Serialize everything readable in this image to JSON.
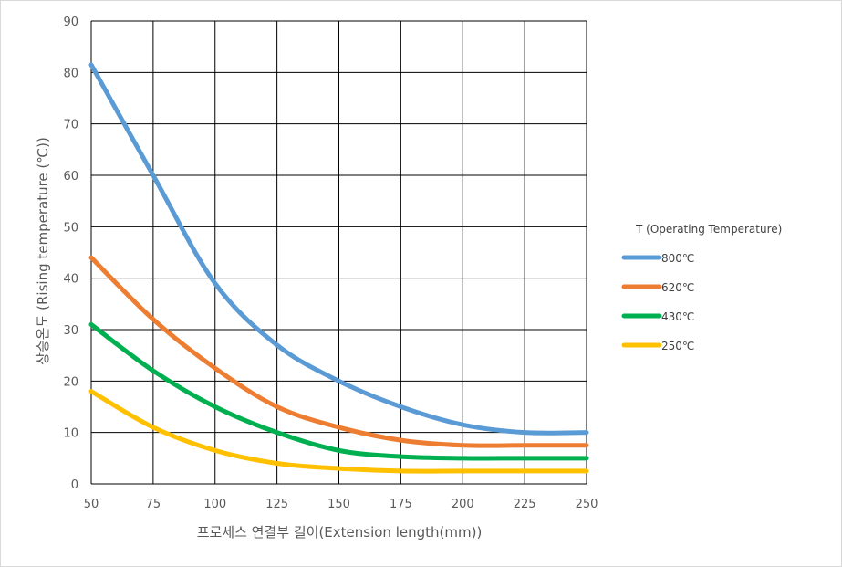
{
  "chart_data": {
    "type": "line",
    "title": "",
    "xlabel": "프로세스 연결부 길이(Extension length(mm))",
    "ylabel": "상승온도 (Rising temperature (℃))",
    "xlim": [
      50,
      250
    ],
    "ylim": [
      0,
      90
    ],
    "x_ticks": [
      50,
      75,
      100,
      125,
      150,
      175,
      200,
      225,
      250
    ],
    "y_ticks": [
      0,
      10,
      20,
      30,
      40,
      50,
      60,
      70,
      80,
      90
    ],
    "grid": true,
    "legend_title": "T (Operating Temperature)",
    "legend_position": "right",
    "series": [
      {
        "name": "800℃",
        "color": "#5b9bd5",
        "x": [
          50,
          75,
          100,
          125,
          150,
          175,
          200,
          225,
          250
        ],
        "y": [
          81.5,
          60,
          39,
          27,
          20,
          15,
          11.5,
          10,
          10
        ]
      },
      {
        "name": "620℃",
        "color": "#ed7d31",
        "x": [
          50,
          75,
          100,
          125,
          150,
          175,
          200,
          225,
          250
        ],
        "y": [
          44,
          32,
          22.5,
          15,
          11,
          8.5,
          7.5,
          7.5,
          7.5
        ]
      },
      {
        "name": "430℃",
        "color": "#00b050",
        "x": [
          50,
          75,
          100,
          125,
          150,
          175,
          200,
          225,
          250
        ],
        "y": [
          31,
          22,
          15,
          10,
          6.5,
          5.3,
          5,
          5,
          5
        ]
      },
      {
        "name": "250℃",
        "color": "#ffc000",
        "x": [
          50,
          75,
          100,
          125,
          150,
          175,
          200,
          225,
          250
        ],
        "y": [
          18,
          11,
          6.5,
          4,
          3,
          2.5,
          2.5,
          2.5,
          2.5
        ]
      }
    ]
  }
}
